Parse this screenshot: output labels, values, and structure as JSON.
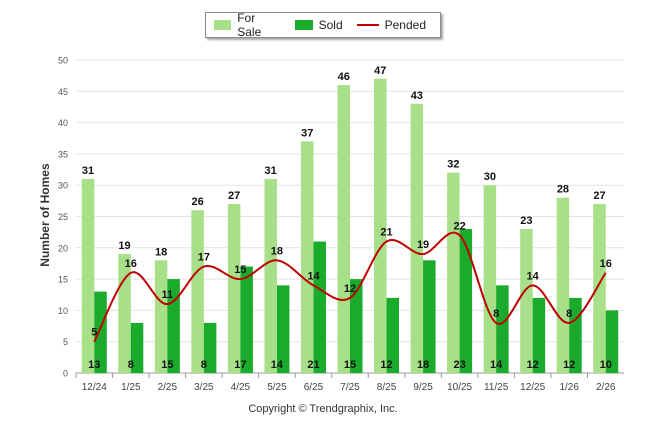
{
  "legend": {
    "for_sale": "For Sale",
    "sold": "Sold",
    "pended": "Pended"
  },
  "copyright": "Copyright © Trendgraphix, Inc.",
  "colors": {
    "for_sale": "#a8e08a",
    "sold": "#1aaa2c",
    "pended": "#c00000",
    "grid": "#e4e4e4",
    "axis": "#999999"
  },
  "chart_data": {
    "type": "bar",
    "title": "",
    "xlabel": "",
    "ylabel": "Number of Homes",
    "ylim": [
      0,
      50
    ],
    "yticks": [
      0,
      5,
      10,
      15,
      20,
      25,
      30,
      35,
      40,
      45,
      50
    ],
    "grid": true,
    "legend_position": "top-center",
    "categories": [
      "12/24",
      "1/25",
      "2/25",
      "3/25",
      "4/25",
      "5/25",
      "6/25",
      "7/25",
      "8/25",
      "9/25",
      "10/25",
      "11/25",
      "12/25",
      "1/26",
      "2/26"
    ],
    "series": [
      {
        "name": "For Sale",
        "kind": "bar",
        "values": [
          31,
          19,
          18,
          26,
          27,
          31,
          37,
          46,
          47,
          43,
          32,
          30,
          23,
          28,
          27
        ]
      },
      {
        "name": "Sold",
        "kind": "bar",
        "values": [
          13,
          8,
          15,
          8,
          17,
          14,
          21,
          15,
          12,
          18,
          23,
          14,
          12,
          12,
          10
        ]
      },
      {
        "name": "Pended",
        "kind": "line",
        "values": [
          5,
          16,
          11,
          17,
          15,
          18,
          14,
          12,
          21,
          19,
          22,
          8,
          14,
          8,
          16
        ]
      }
    ]
  }
}
